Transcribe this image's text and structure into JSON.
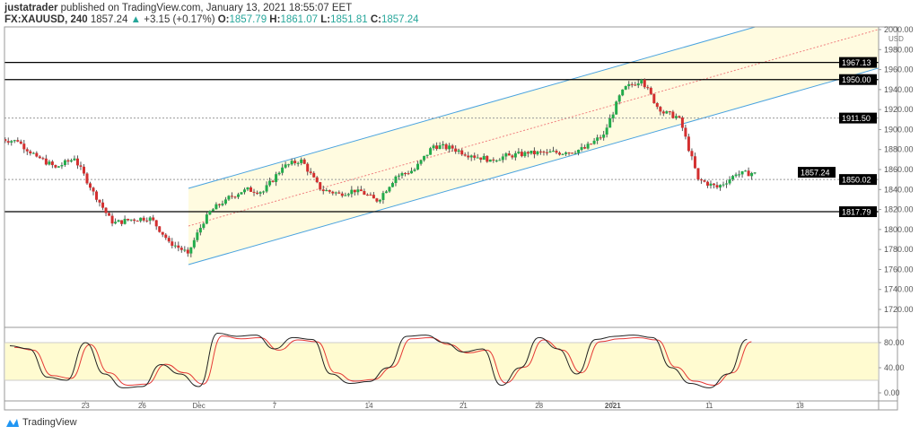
{
  "header": {
    "user": "justatrader",
    "published": "published on TradingView.com, January 13, 2021 18:55:07 EET",
    "symbol": "FX:XAUUSD, 240",
    "last": "1857.24",
    "change": "+3.15 (+0.17%)",
    "o_label": "O:",
    "o": "1857.79",
    "h_label": "H:",
    "h": "1861.07",
    "l_label": "L:",
    "l": "1851.81",
    "c_label": "C:",
    "c": "1857.24"
  },
  "brand": "TradingView",
  "colors": {
    "up": "#22ab4b",
    "down": "#d32f2f",
    "channel": "#4aa3df",
    "channel_fill": "#fffbe0",
    "stoch_k": "#222222",
    "stoch_d": "#e53935",
    "stoch_band": "#fffbd0"
  },
  "chart_data": {
    "type": "candlestick",
    "currency": "USD",
    "price_ticks": [
      "2000.00",
      "1980.00",
      "1960.00",
      "1940.00",
      "1920.00",
      "1900.00",
      "1880.00",
      "1860.00",
      "1840.00",
      "1820.00",
      "1800.00",
      "1780.00",
      "1760.00",
      "1740.00",
      "1720.00"
    ],
    "ylim": [
      1720,
      2000
    ],
    "date_ticks": [
      {
        "label": "23",
        "day": 4
      },
      {
        "label": "26",
        "day": 7
      },
      {
        "label": "Dec",
        "day": 10
      },
      {
        "label": "7",
        "day": 14
      },
      {
        "label": "14",
        "day": 19
      },
      {
        "label": "21",
        "day": 24
      },
      {
        "label": "28",
        "day": 28
      },
      {
        "label": "2021",
        "day": 31.9
      },
      {
        "label": "11",
        "day": 37
      },
      {
        "label": "18",
        "day": 41.8
      }
    ],
    "daily_close": [
      1888,
      1873,
      1862,
      1871,
      1838,
      1806,
      1810,
      1812,
      1788,
      1776,
      1815,
      1830,
      1840,
      1838,
      1862,
      1870,
      1840,
      1836,
      1840,
      1828,
      1853,
      1860,
      1884,
      1881,
      1874,
      1870,
      1874,
      1876,
      1877,
      1877,
      1881,
      1895,
      1940,
      1950,
      1918,
      1912,
      1850,
      1842,
      1855,
      1857
    ],
    "horizontal_levels": [
      {
        "price": "1967.13",
        "style": "solid"
      },
      {
        "price": "1950.00",
        "style": "solid"
      },
      {
        "price": "1911.50",
        "style": "dotted"
      },
      {
        "price": "1850.02",
        "style": "dotted"
      },
      {
        "price": "1817.79",
        "style": "solid"
      }
    ],
    "last_price_label": "1857.24",
    "stochastic": {
      "ticks": [
        "80.00",
        "40.00",
        "0.00"
      ],
      "band": [
        20,
        80
      ],
      "k": [
        75,
        70,
        25,
        20,
        80,
        30,
        8,
        10,
        45,
        30,
        10,
        95,
        90,
        92,
        70,
        88,
        85,
        30,
        15,
        18,
        40,
        90,
        92,
        80,
        65,
        70,
        12,
        40,
        88,
        70,
        30,
        85,
        90,
        92,
        88,
        40,
        15,
        8,
        30,
        85
      ]
    }
  }
}
